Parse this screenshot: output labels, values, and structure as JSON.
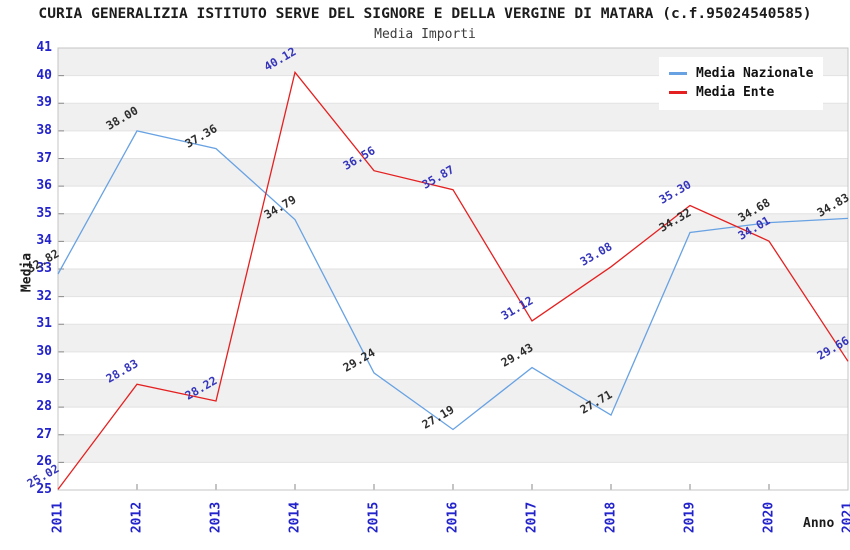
{
  "title": "CURIA GENERALIZIA ISTITUTO SERVE DEL SIGNORE E DELLA VERGINE DI MATARA (c.f.95024540585)",
  "subtitle": "Media Importi",
  "colors": {
    "band": "#f0f0f0",
    "grid_line": "#e2e2e2",
    "border": "#c4c4c4",
    "tick_mark": "#8a8a8a",
    "axis_tick_text": "#2323cc",
    "title_text": "#1c1c1c",
    "nazionale_line": "#68a2e3",
    "ente_line": "#e52020",
    "nazionale_label": "#2e2e2e",
    "ente_label": "#3535bb"
  },
  "chart_data": {
    "type": "line",
    "x": [
      "2011",
      "2012",
      "2013",
      "2014",
      "2015",
      "2016",
      "2017",
      "2018",
      "2019",
      "2020",
      "2021"
    ],
    "xlabel": "Anno",
    "ylabel": "Media",
    "ylim": [
      25,
      41
    ],
    "ytick_step": 1,
    "grid": "horizontal-alternating-bands",
    "legend_position": "top-right",
    "series": [
      {
        "name": "Media Nazionale",
        "color": "#68a2e3",
        "label_color": "#2e2e2e",
        "values": [
          32.82,
          38.0,
          37.36,
          34.79,
          29.24,
          27.19,
          29.43,
          27.71,
          34.32,
          34.68,
          34.83
        ]
      },
      {
        "name": "Media Ente",
        "color": "#e52020",
        "label_color": "#3535bb",
        "values": [
          25.02,
          28.83,
          28.22,
          40.12,
          36.56,
          35.87,
          31.12,
          33.08,
          35.3,
          34.01,
          29.66
        ]
      }
    ]
  }
}
